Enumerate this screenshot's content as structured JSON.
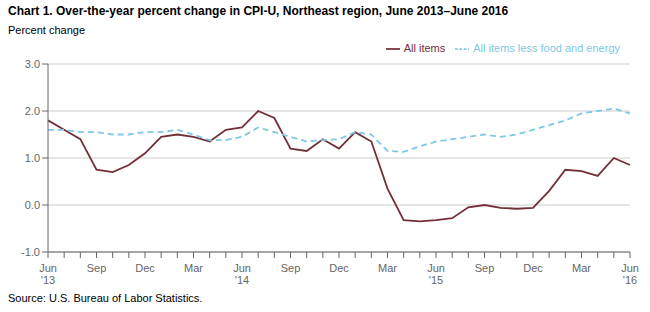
{
  "chart_data": {
    "type": "line",
    "title": "Chart 1. Over-the-year percent change in CPI-U, Northeast region, June 2013–June 2016",
    "ylabel": "Percent change",
    "annotations": [
      "Source: U.S. Bureau of Labor Statistics."
    ],
    "categories": [
      "Jun\n'13",
      null,
      null,
      "Sep",
      null,
      null,
      "Dec",
      null,
      null,
      "Mar",
      null,
      null,
      "Jun\n'14",
      null,
      null,
      "Sep",
      null,
      null,
      "Dec",
      null,
      null,
      "Mar",
      null,
      null,
      "Jun\n'15",
      null,
      null,
      "Sep",
      null,
      null,
      "Dec",
      null,
      null,
      "Mar",
      null,
      null,
      "Jun\n'16"
    ],
    "series": [
      {
        "name": "All items",
        "color": "#722F37",
        "line_style": "solid",
        "values": [
          1.8,
          1.6,
          1.4,
          0.75,
          0.7,
          0.85,
          1.1,
          1.45,
          1.5,
          1.45,
          1.35,
          1.6,
          1.65,
          2.0,
          1.85,
          1.2,
          1.15,
          1.4,
          1.2,
          1.55,
          1.35,
          0.35,
          -0.32,
          -0.35,
          -0.32,
          -0.28,
          -0.05,
          0.0,
          -0.06,
          -0.08,
          -0.06,
          0.3,
          0.75,
          0.72,
          0.62,
          1.0,
          0.85
        ]
      },
      {
        "name": "All items less food and energy",
        "color": "#7EC8E3",
        "line_style": "dashed",
        "values": [
          1.6,
          1.6,
          1.55,
          1.55,
          1.5,
          1.5,
          1.55,
          1.55,
          1.6,
          1.5,
          1.38,
          1.38,
          1.45,
          1.65,
          1.55,
          1.45,
          1.35,
          1.38,
          1.4,
          1.55,
          1.5,
          1.15,
          1.13,
          1.25,
          1.35,
          1.4,
          1.45,
          1.5,
          1.45,
          1.5,
          1.6,
          1.7,
          1.8,
          1.95,
          2.0,
          2.05,
          1.95
        ]
      }
    ],
    "ylim": [
      -1.0,
      3.0
    ],
    "yticks": [
      {
        "value": -1.0,
        "label": "-1.0"
      },
      {
        "value": 0.0,
        "label": "0.0"
      },
      {
        "value": 1.0,
        "label": "1.0"
      },
      {
        "value": 2.0,
        "label": "2.0"
      },
      {
        "value": 3.0,
        "label": "3.0"
      }
    ],
    "grid": true,
    "legend": "upper right"
  }
}
